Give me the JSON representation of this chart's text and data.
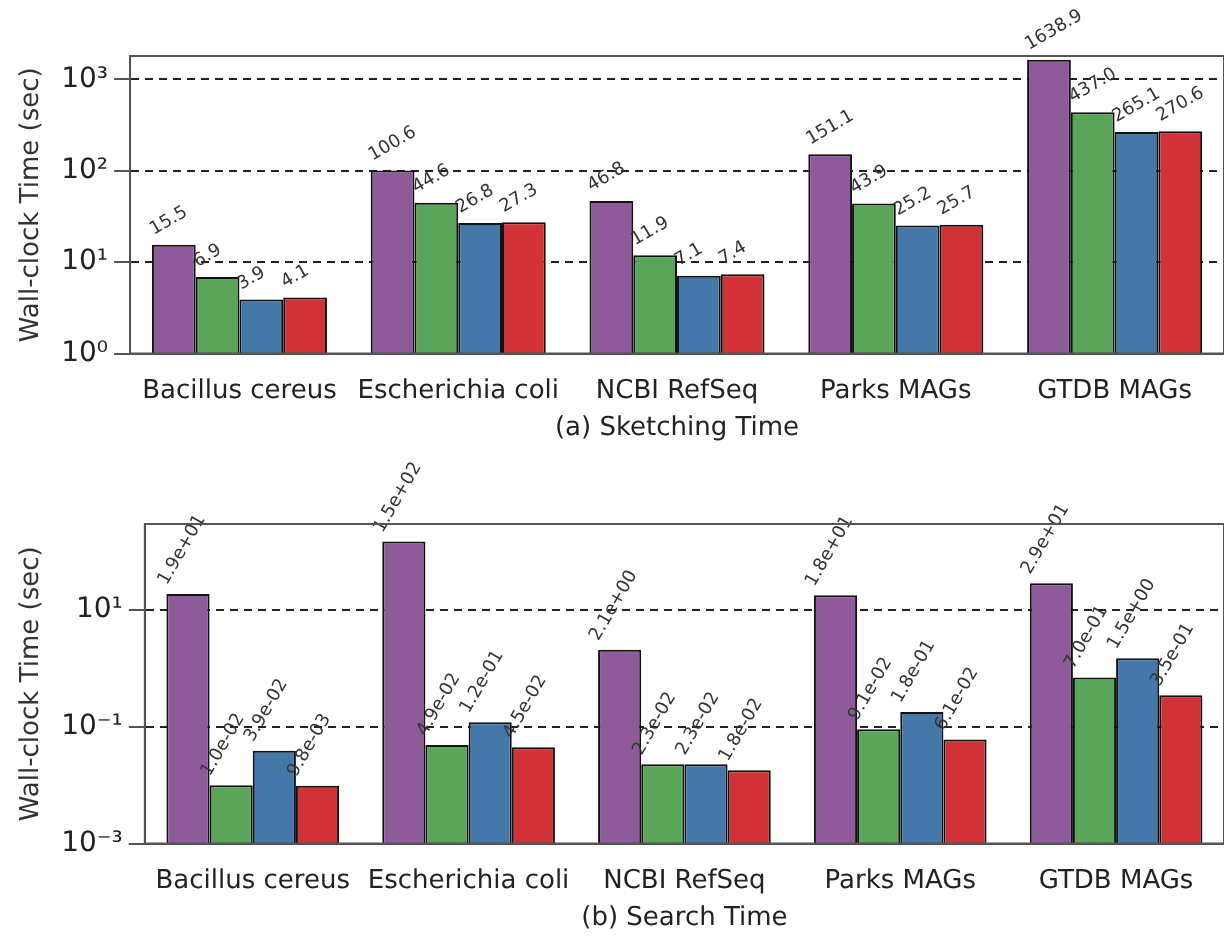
{
  "chart_data": [
    {
      "type": "bar",
      "xlabel": "(a) Sketching Time",
      "ylabel": "Wall-clock Time (sec)",
      "log": "y",
      "grid": "y",
      "legend": false,
      "categories": [
        "Bacillus cereus",
        "Escherichia coli",
        "NCBI RefSeq",
        "Parks MAGs",
        "GTDB MAGs"
      ],
      "ylim": [
        1,
        1800
      ],
      "yticks": [
        {
          "value": 1,
          "label": "10⁰"
        },
        {
          "value": 10,
          "label": "10¹"
        },
        {
          "value": 100,
          "label": "10²"
        },
        {
          "value": 1000,
          "label": "10³"
        }
      ],
      "series": [
        {
          "color": "#8e5a9a",
          "values": [
            15.5,
            100.6,
            46.8,
            151.1,
            1638.9
          ],
          "value_labels": [
            "15.5",
            "100.6",
            "46.8",
            "151.1",
            "1638.9"
          ]
        },
        {
          "color": "#5aa55a",
          "values": [
            6.9,
            44.6,
            11.9,
            43.9,
            437.0
          ],
          "value_labels": [
            "6.9",
            "44.6",
            "11.9",
            "43.9",
            "437.0"
          ]
        },
        {
          "color": "#4378a8",
          "values": [
            3.9,
            26.8,
            7.1,
            25.2,
            265.1
          ],
          "value_labels": [
            "3.9",
            "26.8",
            "7.1",
            "25.2",
            "265.1"
          ]
        },
        {
          "color": "#d03237",
          "values": [
            4.1,
            27.3,
            7.4,
            25.7,
            270.6
          ],
          "value_labels": [
            "4.1",
            "27.3",
            "7.4",
            "25.7",
            "270.6"
          ]
        }
      ]
    },
    {
      "type": "bar",
      "xlabel": "(b) Search Time",
      "ylabel": "Wall-clock Time (sec)",
      "log": "y",
      "grid": "y",
      "legend": false,
      "categories": [
        "Bacillus cereus",
        "Escherichia coli",
        "NCBI RefSeq",
        "Parks MAGs",
        "GTDB MAGs"
      ],
      "ylim": [
        0.001,
        300
      ],
      "yticks": [
        {
          "value": 0.001,
          "label": "10⁻³"
        },
        {
          "value": 0.1,
          "label": "10⁻¹"
        },
        {
          "value": 10,
          "label": "10¹"
        }
      ],
      "series": [
        {
          "color": "#8e5a9a",
          "values": [
            19,
            150,
            2.1,
            18,
            29
          ],
          "value_labels": [
            "1.9e+01",
            "1.5e+02",
            "2.1e+00",
            "1.8e+01",
            "2.9e+01"
          ]
        },
        {
          "color": "#5aa55a",
          "values": [
            0.01,
            0.049,
            0.023,
            0.091,
            0.7
          ],
          "value_labels": [
            "1.0e-02",
            "4.9e-02",
            "2.3e-02",
            "9.1e-02",
            "7.0e-01"
          ]
        },
        {
          "color": "#4378a8",
          "values": [
            0.039,
            0.12,
            0.023,
            0.18,
            1.5
          ],
          "value_labels": [
            "3.9e-02",
            "1.2e-01",
            "2.3e-02",
            "1.8e-01",
            "1.5e+00"
          ]
        },
        {
          "color": "#d03237",
          "values": [
            0.0098,
            0.045,
            0.018,
            0.061,
            0.35
          ],
          "value_labels": [
            "9.8e-03",
            "4.5e-02",
            "1.8e-02",
            "6.1e-02",
            "3.5e-01"
          ]
        }
      ]
    }
  ]
}
